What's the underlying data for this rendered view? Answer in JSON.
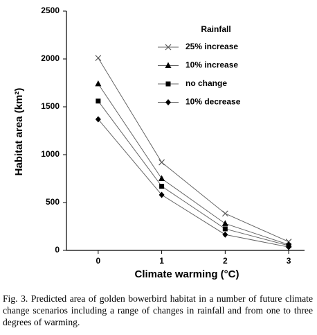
{
  "chart_data": {
    "type": "line",
    "y_label": "Habitat area (km²)",
    "x_label": "Climate warming (°C)",
    "legend_title": "Rainfall",
    "legend_position": "upper right",
    "x": [
      0,
      1,
      2,
      3
    ],
    "xlim": [
      -0.5,
      3.25
    ],
    "xticks": [
      0,
      1,
      2,
      3
    ],
    "ylim": [
      0,
      2500
    ],
    "yticks": [
      0,
      500,
      1000,
      1500,
      2000,
      2500
    ],
    "series": [
      {
        "name": "25% increase",
        "color": "#555555",
        "marker": "x",
        "values": [
          2010,
          920,
          385,
          90
        ]
      },
      {
        "name": "10% increase",
        "color": "#000000",
        "marker": "triangle",
        "values": [
          1740,
          750,
          280,
          60
        ]
      },
      {
        "name": "no change",
        "color": "#000000",
        "marker": "square",
        "values": [
          1560,
          670,
          225,
          50
        ]
      },
      {
        "name": "10% decrease",
        "color": "#000000",
        "marker": "diamond",
        "values": [
          1370,
          580,
          165,
          35
        ]
      }
    ]
  },
  "caption": "Fig. 3. Predicted area of golden bowerbird habitat in a number of future climate change scenarios including a range of changes in rainfall and from one to three degrees of warming."
}
